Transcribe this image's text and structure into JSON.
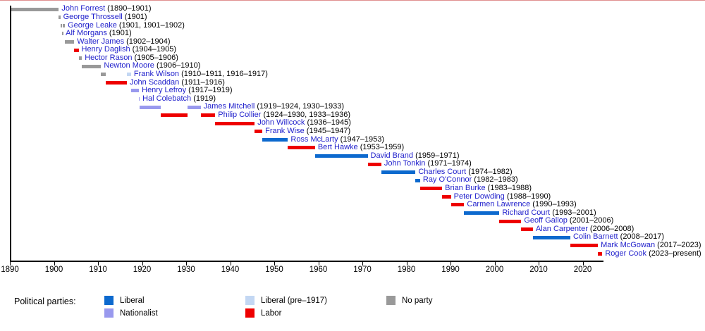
{
  "chart_data": {
    "type": "timeline",
    "x_axis": {
      "min": 1890,
      "max": 2024.5,
      "ticks": [
        1890,
        1900,
        1910,
        1920,
        1930,
        1940,
        1950,
        1960,
        1970,
        1980,
        1990,
        2000,
        2010,
        2020
      ]
    },
    "party_colors": {
      "liberal": "#0c69ce",
      "nationalist": "#9999ee",
      "liberal_pre1917": "#c3d7f3",
      "labor": "#ee0000",
      "no_party": "#999999"
    },
    "premiers": [
      {
        "name": "John Forrest",
        "years": "(1890–1901)",
        "terms": [
          {
            "start": 1890.0,
            "end": 1901.1,
            "party": "no_party"
          }
        ]
      },
      {
        "name": "George Throssell",
        "years": "(1901)",
        "terms": [
          {
            "start": 1901.1,
            "end": 1901.45,
            "party": "no_party"
          }
        ]
      },
      {
        "name": "George Leake",
        "years": "(1901, 1901–1902)",
        "terms": [
          {
            "start": 1901.45,
            "end": 1901.9,
            "party": "no_party"
          },
          {
            "start": 1901.98,
            "end": 1902.5,
            "party": "no_party"
          }
        ]
      },
      {
        "name": "Alf Morgans",
        "years": "(1901)",
        "terms": [
          {
            "start": 1901.88,
            "end": 1902.02,
            "party": "no_party"
          }
        ]
      },
      {
        "name": "Walter James",
        "years": "(1902–1904)",
        "terms": [
          {
            "start": 1902.5,
            "end": 1904.6,
            "party": "no_party"
          }
        ]
      },
      {
        "name": "Henry Daglish",
        "years": "(1904–1905)",
        "terms": [
          {
            "start": 1904.6,
            "end": 1905.6,
            "party": "labor"
          }
        ]
      },
      {
        "name": "Hector Rason",
        "years": "(1905–1906)",
        "terms": [
          {
            "start": 1905.6,
            "end": 1906.35,
            "party": "no_party"
          }
        ]
      },
      {
        "name": "Newton Moore",
        "years": "(1906–1910)",
        "terms": [
          {
            "start": 1906.35,
            "end": 1910.7,
            "party": "no_party"
          }
        ]
      },
      {
        "name": "Frank Wilson",
        "years": "(1910–1911, 1916–1917)",
        "terms": [
          {
            "start": 1910.7,
            "end": 1911.75,
            "party": "no_party"
          },
          {
            "start": 1916.55,
            "end": 1917.5,
            "party": "liberal_pre1917"
          }
        ]
      },
      {
        "name": "John Scaddan",
        "years": "(1911–1916)",
        "terms": [
          {
            "start": 1911.75,
            "end": 1916.55,
            "party": "labor"
          }
        ]
      },
      {
        "name": "Henry Lefroy",
        "years": "(1917–1919)",
        "terms": [
          {
            "start": 1917.5,
            "end": 1919.3,
            "party": "nationalist"
          }
        ]
      },
      {
        "name": "Hal Colebatch",
        "years": "(1919)",
        "terms": [
          {
            "start": 1919.3,
            "end": 1919.45,
            "party": "nationalist"
          }
        ]
      },
      {
        "name": "James Mitchell",
        "years": "(1919–1924, 1930–1933)",
        "terms": [
          {
            "start": 1919.45,
            "end": 1924.3,
            "party": "nationalist"
          },
          {
            "start": 1930.3,
            "end": 1933.3,
            "party": "nationalist"
          }
        ]
      },
      {
        "name": "Philip Collier",
        "years": "(1924–1930, 1933–1936)",
        "terms": [
          {
            "start": 1924.3,
            "end": 1930.3,
            "party": "labor"
          },
          {
            "start": 1933.3,
            "end": 1936.6,
            "party": "labor"
          }
        ]
      },
      {
        "name": "John Willcock",
        "years": "(1936–1945)",
        "terms": [
          {
            "start": 1936.6,
            "end": 1945.55,
            "party": "labor"
          }
        ]
      },
      {
        "name": "Frank Wise",
        "years": "(1945–1947)",
        "terms": [
          {
            "start": 1945.55,
            "end": 1947.3,
            "party": "labor"
          }
        ]
      },
      {
        "name": "Ross McLarty",
        "years": "(1947–1953)",
        "terms": [
          {
            "start": 1947.3,
            "end": 1953.1,
            "party": "liberal"
          }
        ]
      },
      {
        "name": "Bert Hawke",
        "years": "(1953–1959)",
        "terms": [
          {
            "start": 1953.1,
            "end": 1959.25,
            "party": "labor"
          }
        ]
      },
      {
        "name": "David Brand",
        "years": "(1959–1971)",
        "terms": [
          {
            "start": 1959.25,
            "end": 1971.2,
            "party": "liberal"
          }
        ]
      },
      {
        "name": "John Tonkin",
        "years": "(1971–1974)",
        "terms": [
          {
            "start": 1971.2,
            "end": 1974.3,
            "party": "labor"
          }
        ]
      },
      {
        "name": "Charles Court",
        "years": "(1974–1982)",
        "terms": [
          {
            "start": 1974.3,
            "end": 1982.05,
            "party": "liberal"
          }
        ]
      },
      {
        "name": "Ray O'Connor",
        "years": "(1982–1983)",
        "terms": [
          {
            "start": 1982.05,
            "end": 1983.1,
            "party": "liberal"
          }
        ]
      },
      {
        "name": "Brian Burke",
        "years": "(1983–1988)",
        "terms": [
          {
            "start": 1983.1,
            "end": 1988.1,
            "party": "labor"
          }
        ]
      },
      {
        "name": "Peter Dowding",
        "years": "(1988–1990)",
        "terms": [
          {
            "start": 1988.1,
            "end": 1990.1,
            "party": "labor"
          }
        ]
      },
      {
        "name": "Carmen Lawrence",
        "years": "(1990–1993)",
        "terms": [
          {
            "start": 1990.1,
            "end": 1993.1,
            "party": "labor"
          }
        ]
      },
      {
        "name": "Richard Court",
        "years": "(1993–2001)",
        "terms": [
          {
            "start": 1993.1,
            "end": 2001.1,
            "party": "liberal"
          }
        ]
      },
      {
        "name": "Geoff Gallop",
        "years": "(2001–2006)",
        "terms": [
          {
            "start": 2001.1,
            "end": 2006.05,
            "party": "labor"
          }
        ]
      },
      {
        "name": "Alan Carpenter",
        "years": "(2006–2008)",
        "terms": [
          {
            "start": 2006.05,
            "end": 2008.7,
            "party": "labor"
          }
        ]
      },
      {
        "name": "Colin Barnett",
        "years": "(2008–2017)",
        "terms": [
          {
            "start": 2008.7,
            "end": 2017.2,
            "party": "liberal"
          }
        ]
      },
      {
        "name": "Mark McGowan",
        "years": "(2017–2023)",
        "terms": [
          {
            "start": 2017.2,
            "end": 2023.45,
            "party": "labor"
          }
        ]
      },
      {
        "name": "Roger Cook",
        "years": "(2023–present)",
        "terms": [
          {
            "start": 2023.45,
            "end": 2024.45,
            "party": "labor"
          }
        ]
      }
    ]
  },
  "legend": {
    "title": "Political parties:",
    "items": [
      {
        "label": "Liberal",
        "party": "liberal"
      },
      {
        "label": "Nationalist",
        "party": "nationalist"
      },
      {
        "label": "Liberal (pre–1917)",
        "party": "liberal_pre1917"
      },
      {
        "label": "Labor",
        "party": "labor"
      },
      {
        "label": "No party",
        "party": "no_party"
      }
    ]
  }
}
